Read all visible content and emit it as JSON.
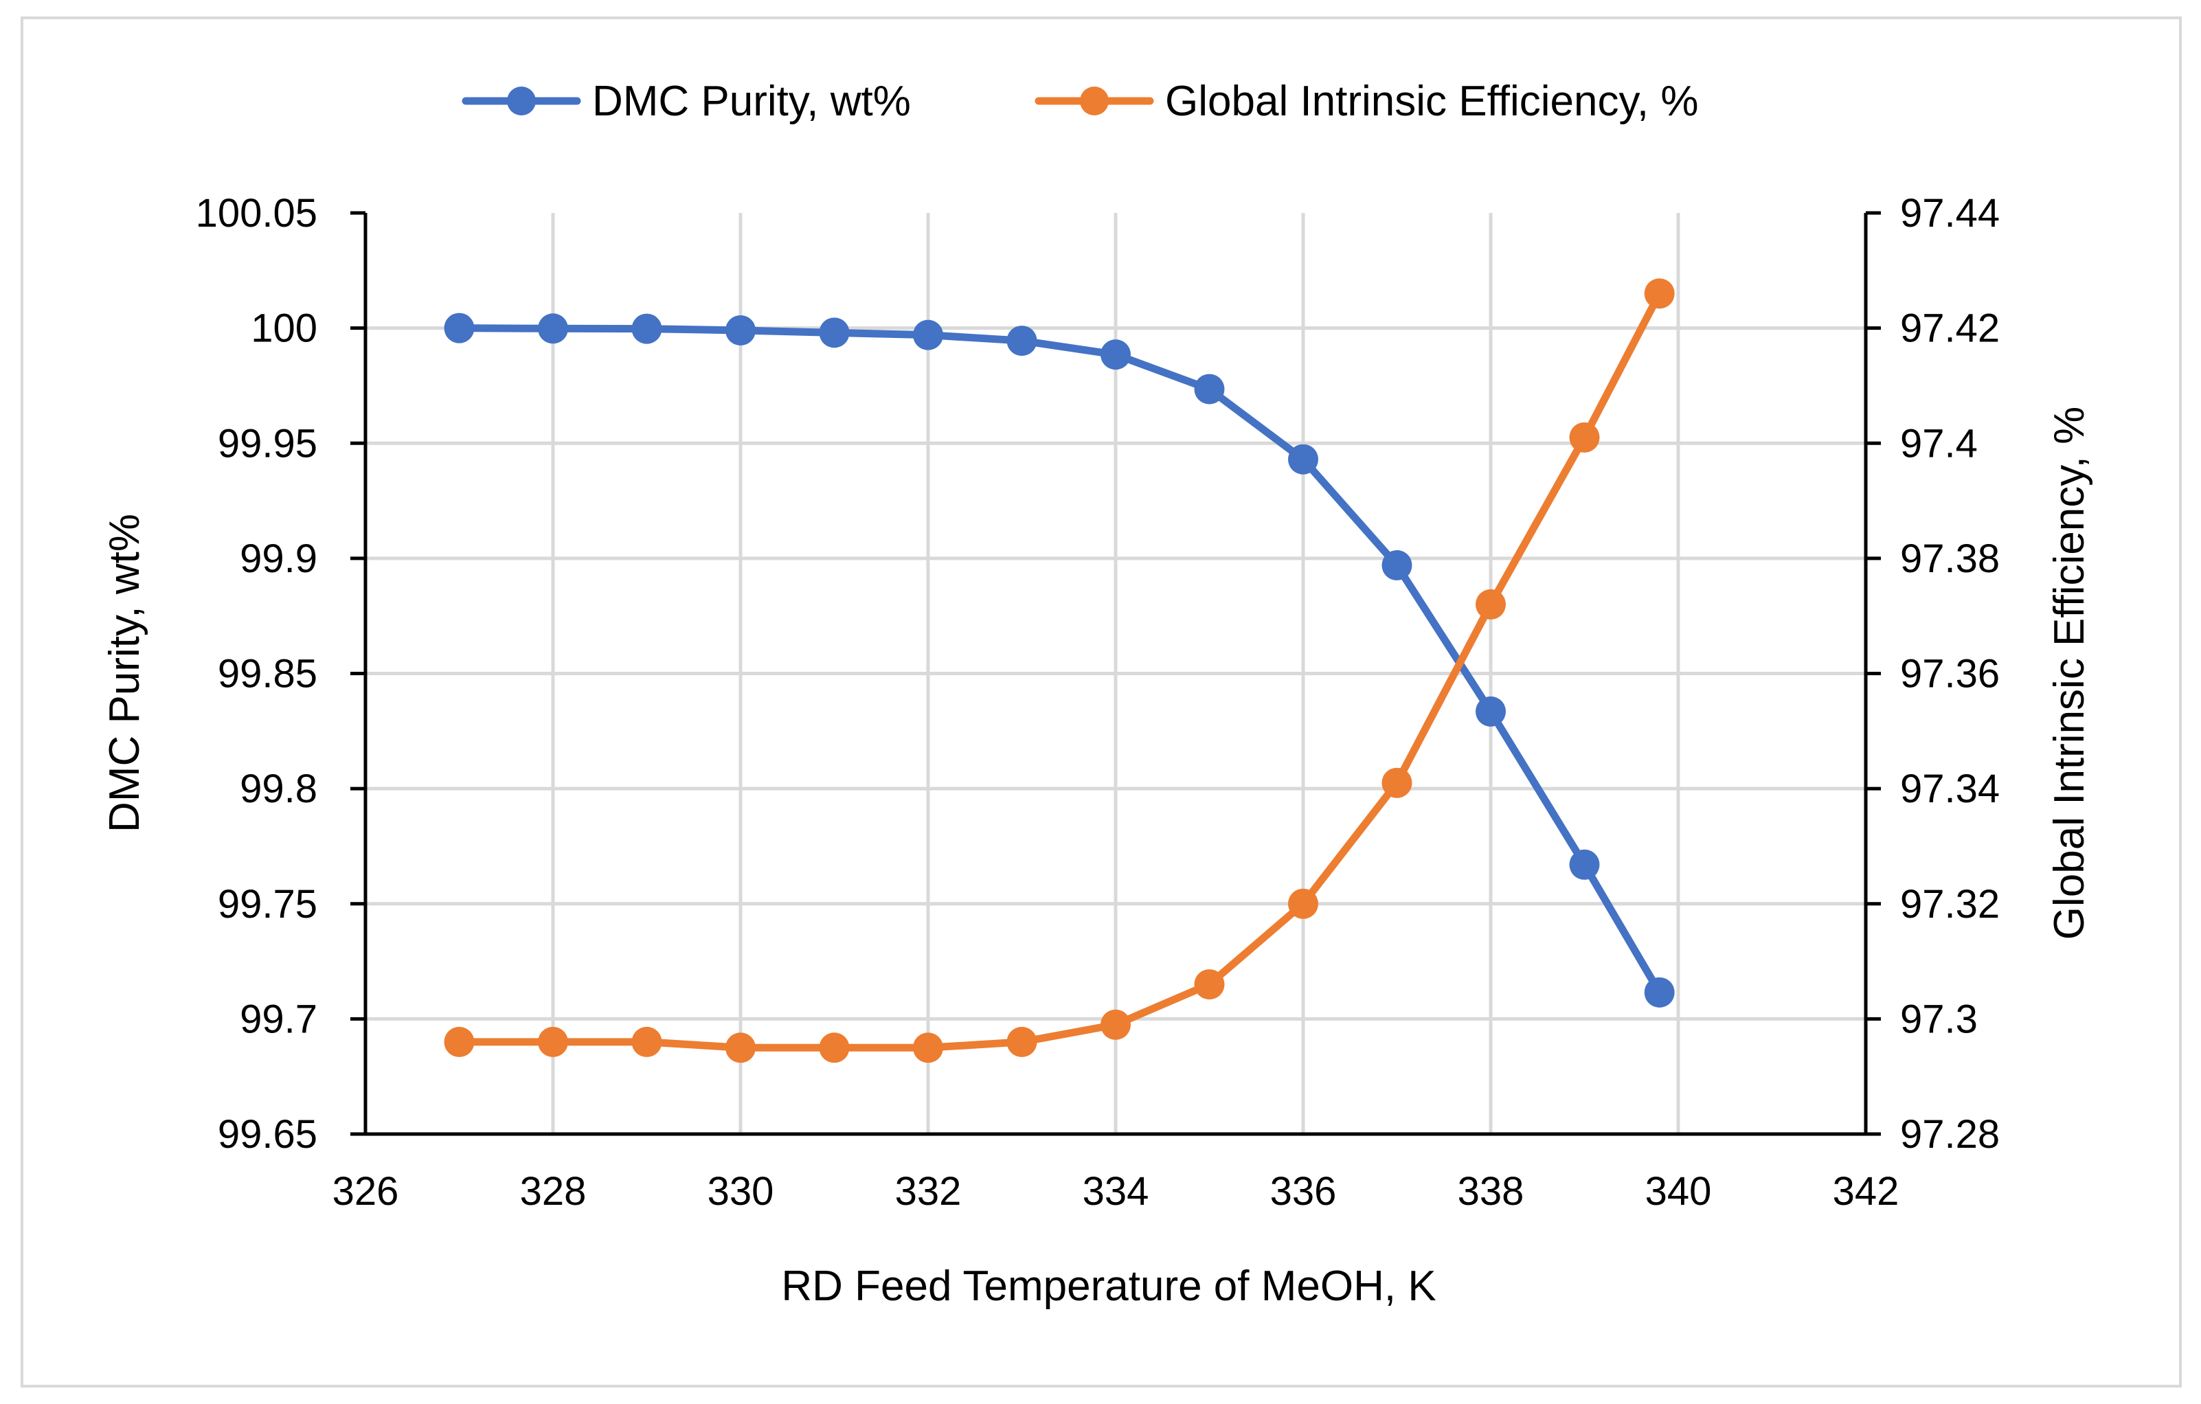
{
  "chart_data": {
    "type": "line",
    "title": "",
    "xlabel": "RD Feed Temperature of MeOH, K",
    "ylabel": "DMC Purity, wt%",
    "y2label": "Global Intrinsic Efficiency, %",
    "xlim": [
      326,
      342
    ],
    "ylim": [
      99.65,
      100.05
    ],
    "y2lim": [
      97.28,
      97.44
    ],
    "x_ticks": [
      "326",
      "328",
      "330",
      "332",
      "334",
      "336",
      "338",
      "340",
      "342"
    ],
    "y_ticks": [
      "100.05",
      "100",
      "99.95",
      "99.9",
      "99.85",
      "99.8",
      "99.75",
      "99.7",
      "99.65"
    ],
    "y2_ticks": [
      "97.44",
      "97.42",
      "97.4",
      "97.38",
      "97.36",
      "97.34",
      "97.32",
      "97.3",
      "97.28"
    ],
    "grid": true,
    "legend_position": "top",
    "series": [
      {
        "name": "DMC Purity, wt%",
        "axis": "left",
        "color": "#4472c4",
        "x": [
          327,
          328,
          329,
          330,
          331,
          332,
          333,
          334,
          335,
          336,
          337,
          338,
          339,
          339.8
        ],
        "values": [
          100.0,
          99.9998,
          99.9997,
          99.999,
          99.998,
          99.997,
          99.9945,
          99.9885,
          99.9735,
          99.943,
          99.897,
          99.8335,
          99.767,
          99.7115
        ]
      },
      {
        "name": "Global Intrinsic Efficiency, %",
        "axis": "right",
        "color": "#ed7d31",
        "x": [
          327,
          328,
          329,
          330,
          331,
          332,
          333,
          334,
          335,
          336,
          337,
          338,
          339,
          339.8
        ],
        "values": [
          97.296,
          97.296,
          97.296,
          97.295,
          97.295,
          97.295,
          97.296,
          97.299,
          97.306,
          97.32,
          97.341,
          97.372,
          97.401,
          97.426
        ]
      }
    ]
  }
}
